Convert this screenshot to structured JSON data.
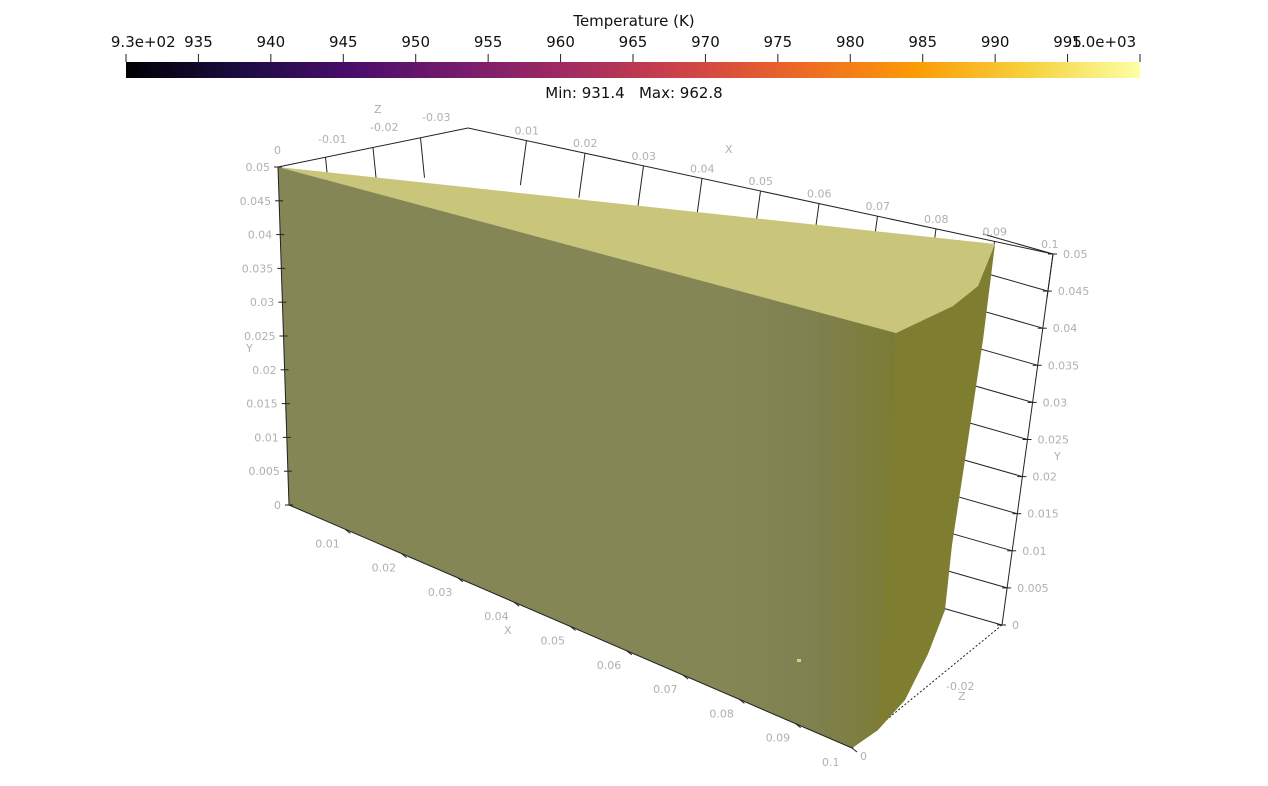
{
  "colorbar": {
    "title": "Temperature (K)",
    "min_label": "9.3e+02",
    "max_label": "1.0e+03",
    "ticks": [
      "935",
      "940",
      "945",
      "950",
      "955",
      "960",
      "965",
      "970",
      "975",
      "980",
      "985",
      "990",
      "995"
    ],
    "range_text": "Min: 931.4   Max: 962.8",
    "colormap": "inferno",
    "colors": [
      "#000004",
      "#1b0c41",
      "#4a0c6b",
      "#781c6d",
      "#a52c60",
      "#cf4446",
      "#ed6925",
      "#fb9b06",
      "#f7d13d",
      "#fcffa4"
    ]
  },
  "object": {
    "front_color": "#838455",
    "top_color": "#c9c57b",
    "right_color": "#7e7d30"
  },
  "axes": {
    "left_y": [
      "0",
      "0.005",
      "0.01",
      "0.015",
      "0.02",
      "0.025",
      "0.03",
      "0.035",
      "0.04",
      "0.045",
      "0.05"
    ],
    "left_y_title": "Y",
    "right_y": [
      "0",
      "0.005",
      "0.01",
      "0.015",
      "0.02",
      "0.025",
      "0.03",
      "0.035",
      "0.04",
      "0.045",
      "0.05"
    ],
    "right_y_title": "Y",
    "top_x": [
      "0.01",
      "0.02",
      "0.03",
      "0.04",
      "0.05",
      "0.06",
      "0.07",
      "0.08",
      "0.09",
      "0.1"
    ],
    "top_x_title": "X",
    "bottom_x": [
      "0.01",
      "0.02",
      "0.03",
      "0.04",
      "0.05",
      "0.06",
      "0.07",
      "0.08",
      "0.09",
      "0.1"
    ],
    "bottom_x_title": "X",
    "top_z": [
      "0",
      "-0.01",
      "-0.02",
      "-0.03"
    ],
    "top_z_title": "Z",
    "bottom_z": [
      "0",
      "-0.02"
    ],
    "bottom_z_title": "Z"
  }
}
